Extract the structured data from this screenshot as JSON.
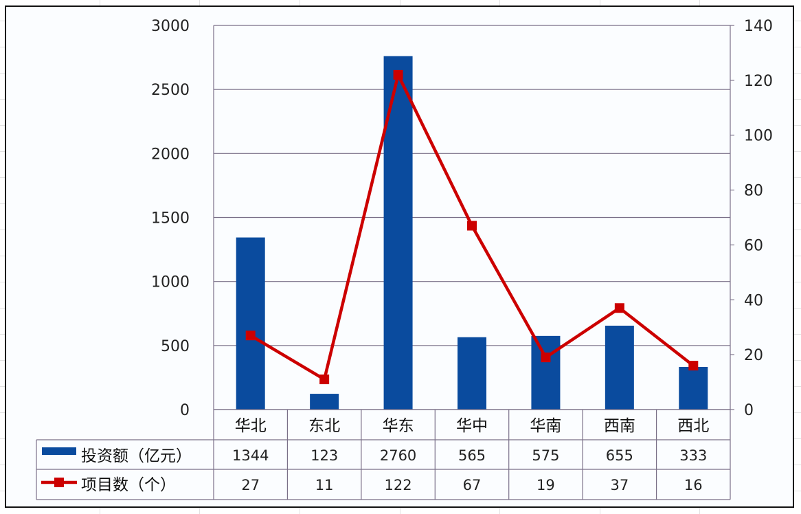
{
  "chart_data": {
    "type": "bar+line",
    "title": "",
    "categories": [
      "华北",
      "东北",
      "华东",
      "华中",
      "华南",
      "西南",
      "西北"
    ],
    "series": [
      {
        "name": "投资额（亿元）",
        "type": "bar",
        "axis": "left",
        "color": "#0a4b9e",
        "values": [
          1344,
          123,
          2760,
          565,
          575,
          655,
          333
        ]
      },
      {
        "name": "项目数（个）",
        "type": "line",
        "axis": "right",
        "color": "#cc0000",
        "marker": "square",
        "values": [
          27,
          11,
          122,
          67,
          19,
          37,
          16
        ]
      }
    ],
    "left_axis": {
      "min": 0,
      "max": 3000,
      "step": 500,
      "ticks": [
        "0",
        "500",
        "1000",
        "1500",
        "2000",
        "2500",
        "3000"
      ]
    },
    "right_axis": {
      "min": 0,
      "max": 140,
      "step": 20,
      "ticks": [
        "0",
        "20",
        "40",
        "60",
        "80",
        "100",
        "120",
        "140"
      ]
    },
    "xlabel": "",
    "ylabel": "",
    "y2label": "",
    "grid": true,
    "legend_position": "data-table-left",
    "data_table": true
  },
  "table": {
    "legend": {
      "bar_label": "投资额（亿元）",
      "line_label": "项目数（个）"
    }
  },
  "colors": {
    "bar": "#0a4b9e",
    "line": "#cc0000",
    "grid": "#7a7088",
    "frame": "#111111"
  }
}
